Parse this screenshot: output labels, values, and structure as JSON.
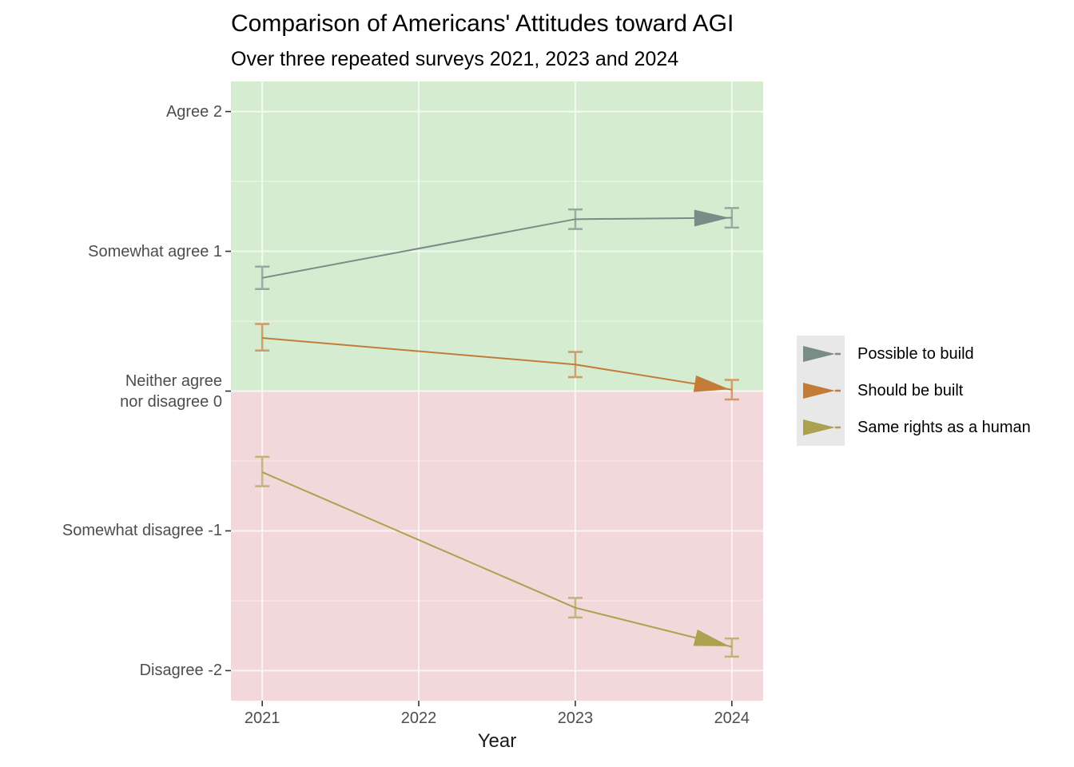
{
  "page": {
    "background": "#ffffff"
  },
  "chart_data": {
    "type": "line",
    "title": "Comparison of Americans' Attitudes toward AGI",
    "subtitle": "Over three repeated surveys 2021, 2023 and 2024",
    "xlabel": "Year",
    "xlim": [
      2020.8,
      2024.2
    ],
    "ylim": [
      -2.215,
      2.215
    ],
    "x_ticks": [
      {
        "value": 2021,
        "label": "2021"
      },
      {
        "value": 2022,
        "label": "2022"
      },
      {
        "value": 2023,
        "label": "2023"
      },
      {
        "value": 2024,
        "label": "2024"
      }
    ],
    "y_ticks": [
      {
        "value": 2,
        "lines": [
          "Agree 2"
        ]
      },
      {
        "value": 1,
        "lines": [
          "Somewhat agree 1"
        ]
      },
      {
        "value": 0,
        "lines": [
          "Neither agree",
          "nor disagree 0"
        ]
      },
      {
        "value": -1,
        "lines": [
          "Somewhat disagree -1"
        ]
      },
      {
        "value": -2,
        "lines": [
          "Disagree -2"
        ]
      }
    ],
    "y_minor_gridlines": [
      1.5,
      0.5,
      -0.5,
      -1.5
    ],
    "grid_on": true,
    "grid_color": "#ffffff",
    "axis_text_color": "#4d4d4d",
    "tick_mark_color": "#333333",
    "bands": [
      {
        "name": "agree-zone",
        "from": 0,
        "to": 2.215,
        "color": "#d6ecd0"
      },
      {
        "name": "disagree-zone",
        "from": -2.215,
        "to": 0,
        "color": "#f2d8da"
      }
    ],
    "series": [
      {
        "name": "Possible to build",
        "color": "#7a8c87",
        "x": [
          2021,
          2023,
          2024
        ],
        "y": [
          0.81,
          1.23,
          1.24
        ],
        "err_low": [
          0.73,
          1.16,
          1.17
        ],
        "err_high": [
          0.89,
          1.3,
          1.31
        ],
        "arrow_at_end": true
      },
      {
        "name": "Should be built",
        "color": "#c37c38",
        "x": [
          2021,
          2023,
          2024
        ],
        "y": [
          0.38,
          0.19,
          0.01
        ],
        "err_low": [
          0.29,
          0.1,
          -0.06
        ],
        "err_high": [
          0.48,
          0.28,
          0.08
        ],
        "arrow_at_end": true
      },
      {
        "name": "Same rights as a human",
        "color": "#aca14f",
        "x": [
          2021,
          2023,
          2024
        ],
        "y": [
          -0.58,
          -1.55,
          -1.83
        ],
        "err_low": [
          -0.68,
          -1.62,
          -1.9
        ],
        "err_high": [
          -0.47,
          -1.48,
          -1.77
        ],
        "arrow_at_end": true
      }
    ],
    "legend": {
      "position": "right",
      "key_fill": "#e8e8e8",
      "entries": [
        "Possible to build",
        "Should be built",
        "Same rights as a human"
      ]
    }
  }
}
